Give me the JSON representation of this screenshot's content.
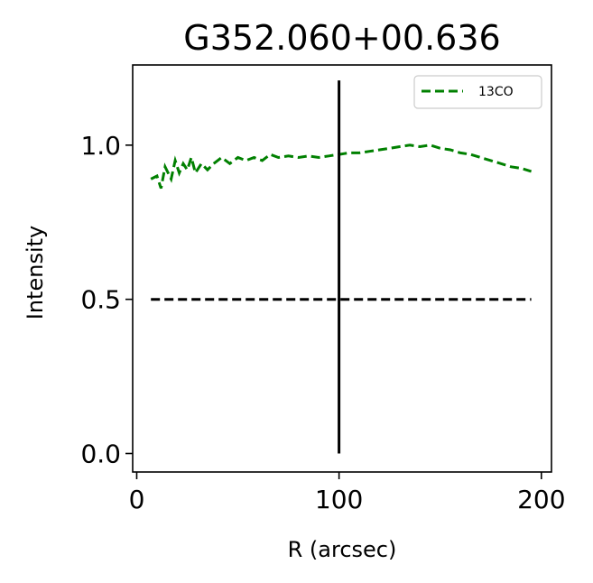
{
  "chart_data": {
    "type": "line",
    "title": "G352.060+00.636",
    "xlabel": "R (arcsec)",
    "ylabel": "Intensity",
    "xlim": [
      -2,
      205
    ],
    "ylim": [
      -0.06,
      1.26
    ],
    "xticks": [
      0,
      100,
      200
    ],
    "xtick_labels": [
      "0",
      "100",
      "200"
    ],
    "yticks": [
      0.0,
      0.5,
      1.0
    ],
    "ytick_labels": [
      "0.0",
      "0.5",
      "1.0"
    ],
    "grid": false,
    "legend_position": "top-right",
    "series": [
      {
        "name": "13CO",
        "color": "#008000",
        "style": "dashed",
        "x": [
          7,
          10,
          12,
          14,
          17,
          19,
          21,
          23,
          25,
          27,
          29,
          32,
          35,
          38,
          42,
          46,
          50,
          54,
          58,
          62,
          66,
          70,
          75,
          80,
          85,
          90,
          95,
          100,
          105,
          110,
          115,
          120,
          125,
          130,
          135,
          140,
          145,
          150,
          155,
          160,
          165,
          170,
          175,
          180,
          185,
          190,
          195
        ],
        "y": [
          0.89,
          0.9,
          0.86,
          0.93,
          0.89,
          0.95,
          0.91,
          0.94,
          0.92,
          0.96,
          0.91,
          0.94,
          0.92,
          0.94,
          0.96,
          0.94,
          0.96,
          0.95,
          0.96,
          0.95,
          0.97,
          0.96,
          0.965,
          0.96,
          0.965,
          0.96,
          0.965,
          0.97,
          0.975,
          0.975,
          0.98,
          0.985,
          0.99,
          0.995,
          1.0,
          0.995,
          1.0,
          0.99,
          0.985,
          0.975,
          0.97,
          0.96,
          0.95,
          0.94,
          0.93,
          0.925,
          0.915
        ]
      },
      {
        "color": "#000000",
        "style": "dashed",
        "x": [
          7,
          195
        ],
        "y": [
          0.5,
          0.5
        ]
      },
      {
        "color": "#000000",
        "style": "solid",
        "x": [
          100,
          100
        ],
        "y": [
          0.0,
          1.21
        ]
      }
    ]
  }
}
